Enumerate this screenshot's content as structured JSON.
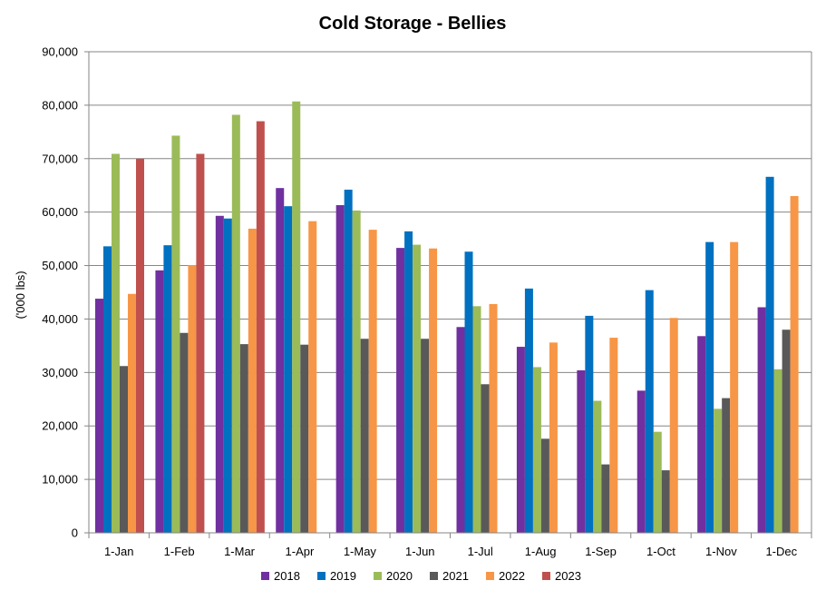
{
  "chart_data": {
    "type": "bar",
    "title": "Cold Storage - Bellies",
    "xlabel": "",
    "ylabel": "('000 lbs)",
    "ylim": [
      0,
      90000
    ],
    "yticks": [
      0,
      10000,
      20000,
      30000,
      40000,
      50000,
      60000,
      70000,
      80000,
      90000
    ],
    "ytick_labels": [
      "0",
      "10,000",
      "20,000",
      "30,000",
      "40,000",
      "50,000",
      "60,000",
      "70,000",
      "80,000",
      "90,000"
    ],
    "grid": true,
    "legend_position": "bottom",
    "categories": [
      "1-Jan",
      "1-Feb",
      "1-Mar",
      "1-Apr",
      "1-May",
      "1-Jun",
      "1-Jul",
      "1-Aug",
      "1-Sep",
      "1-Oct",
      "1-Nov",
      "1-Dec"
    ],
    "series": [
      {
        "name": "2018",
        "color": "#7030A0",
        "values": [
          43800,
          49100,
          59300,
          64500,
          61300,
          53300,
          38500,
          34800,
          30400,
          26600,
          36800,
          42200
        ]
      },
      {
        "name": "2019",
        "color": "#0070C0",
        "values": [
          53600,
          53800,
          58800,
          61100,
          64200,
          56400,
          52600,
          45700,
          40600,
          45400,
          54400,
          66600
        ]
      },
      {
        "name": "2020",
        "color": "#9BBB59",
        "values": [
          70900,
          74300,
          78200,
          80700,
          60300,
          53900,
          42400,
          31000,
          24700,
          18900,
          23200,
          30600
        ]
      },
      {
        "name": "2021",
        "color": "#595959",
        "values": [
          31200,
          37400,
          35300,
          35200,
          36300,
          36300,
          27800,
          17600,
          12800,
          11700,
          25200,
          38000
        ]
      },
      {
        "name": "2022",
        "color": "#F79646",
        "values": [
          44700,
          50100,
          56900,
          58300,
          56700,
          53200,
          42800,
          35600,
          36500,
          40200,
          54400,
          63000
        ]
      },
      {
        "name": "2023",
        "color": "#C0504D",
        "values": [
          70000,
          70900,
          77000,
          null,
          null,
          null,
          null,
          null,
          null,
          null,
          null,
          null
        ]
      }
    ]
  }
}
